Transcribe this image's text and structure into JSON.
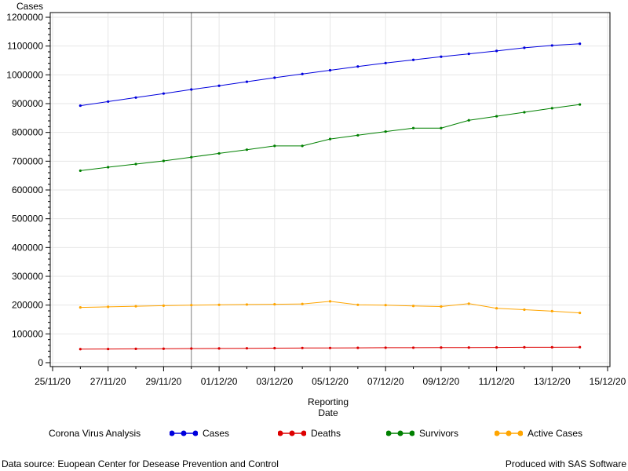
{
  "chart_data": {
    "type": "line",
    "ylabel": "Cases",
    "xlabel_line1": "Reporting",
    "xlabel_line2": "Date",
    "x_tick_labels": [
      "25/11/20",
      "27/11/20",
      "29/11/20",
      "01/12/20",
      "03/12/20",
      "05/12/20",
      "07/12/20",
      "09/12/20",
      "11/12/20",
      "13/12/20",
      "15/12/20"
    ],
    "x_range": [
      "2020-11-25",
      "2020-12-15"
    ],
    "reference_line_x": "2020-11-30",
    "y_ticks": [
      0,
      100000,
      200000,
      300000,
      400000,
      500000,
      600000,
      700000,
      800000,
      900000,
      1000000,
      1100000,
      1200000
    ],
    "ylim": [
      0,
      1200000
    ],
    "grid": true,
    "dates": [
      "2020-11-26",
      "2020-11-27",
      "2020-11-28",
      "2020-11-29",
      "2020-11-30",
      "2020-12-01",
      "2020-12-02",
      "2020-12-03",
      "2020-12-04",
      "2020-12-05",
      "2020-12-06",
      "2020-12-07",
      "2020-12-08",
      "2020-12-09",
      "2020-12-10",
      "2020-12-11",
      "2020-12-12",
      "2020-12-13",
      "2020-12-14"
    ],
    "series": [
      {
        "name": "Cases",
        "color": "#0000dd",
        "values": [
          893000,
          907000,
          921000,
          935000,
          949000,
          962000,
          976000,
          990000,
          1003000,
          1016000,
          1029000,
          1041000,
          1052000,
          1063000,
          1073000,
          1083000,
          1094000,
          1102000,
          1108000
        ]
      },
      {
        "name": "Deaths",
        "color": "#dd0000",
        "values": [
          47000,
          47500,
          48000,
          48500,
          49000,
          49500,
          50000,
          50500,
          51000,
          51000,
          51500,
          52000,
          52000,
          52500,
          52500,
          53000,
          53500,
          53500,
          54000
        ]
      },
      {
        "name": "Survivors",
        "color": "#008000",
        "values": [
          667000,
          679000,
          690000,
          701000,
          714000,
          727000,
          740000,
          753000,
          753000,
          777000,
          790000,
          803000,
          815000,
          815000,
          842000,
          856000,
          870000,
          884000,
          897000
        ]
      },
      {
        "name": "Active Cases",
        "color": "#ffa500",
        "values": [
          192000,
          194000,
          196000,
          198000,
          200000,
          201000,
          202000,
          203000,
          204000,
          213000,
          201000,
          200000,
          197000,
          195000,
          205000,
          189000,
          184000,
          179000,
          173000
        ]
      }
    ]
  },
  "legend": {
    "title": "Corona Virus Analysis",
    "items": [
      {
        "label": "Cases",
        "color": "#0000dd"
      },
      {
        "label": "Deaths",
        "color": "#dd0000"
      },
      {
        "label": "Survivors",
        "color": "#008000"
      },
      {
        "label": "Active Cases",
        "color": "#ffa500"
      }
    ]
  },
  "footer": {
    "source": "Data source: Euopean Center for Desease Prevention and Control",
    "credit": "Produced with SAS Software"
  }
}
